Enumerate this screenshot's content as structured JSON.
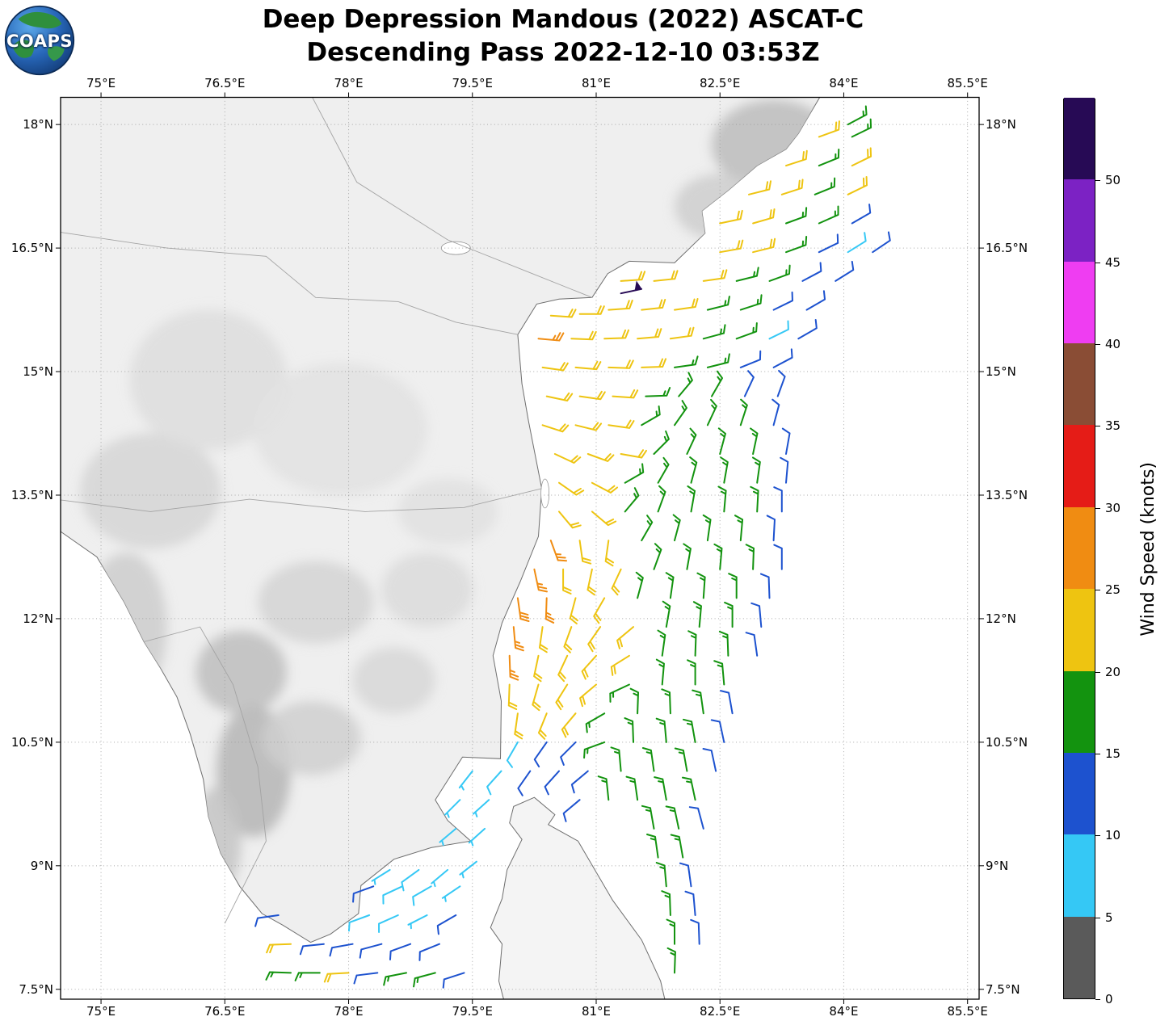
{
  "header": {
    "title_line1": "Deep Depression Mandous (2022) ASCAT-C",
    "title_line2": "Descending Pass 2022-12-10 03:53Z"
  },
  "logo": {
    "text": "COAPS"
  },
  "map": {
    "lon_ticks": [
      {
        "v": 75,
        "label": "75°E"
      },
      {
        "v": 76.5,
        "label": "76.5°E"
      },
      {
        "v": 78,
        "label": "78°E"
      },
      {
        "v": 79.5,
        "label": "79.5°E"
      },
      {
        "v": 81,
        "label": "81°E"
      },
      {
        "v": 82.5,
        "label": "82.5°E"
      },
      {
        "v": 84,
        "label": "84°E"
      },
      {
        "v": 85.5,
        "label": "85.5°E"
      }
    ],
    "lat_ticks": [
      {
        "v": 18,
        "label": "18°N"
      },
      {
        "v": 16.5,
        "label": "16.5°N"
      },
      {
        "v": 15,
        "label": "15°N"
      },
      {
        "v": 13.5,
        "label": "13.5°N"
      },
      {
        "v": 12,
        "label": "12°N"
      },
      {
        "v": 10.5,
        "label": "10.5°N"
      },
      {
        "v": 9,
        "label": "9°N"
      },
      {
        "v": 7.5,
        "label": "7.5°N"
      }
    ]
  },
  "colorbar": {
    "title": "Wind Speed (knots)",
    "ticks": [
      "0",
      "5",
      "10",
      "15",
      "20",
      "25",
      "30",
      "35",
      "40",
      "45",
      "50"
    ],
    "colors_bottom_to_top": [
      "#5a5a5a",
      "#35c8f5",
      "#1d52cf",
      "#13930f",
      "#eec411",
      "#f08c12",
      "#e51c17",
      "#8a4d35",
      "#ef3df2",
      "#7c22c4",
      "#270a55"
    ]
  },
  "chart_data": {
    "type": "wind_barb_map",
    "units": "knots",
    "lon_range": [
      74.51,
      85.64
    ],
    "lat_range": [
      7.38,
      18.33
    ],
    "speed_colors": [
      {
        "max": 5,
        "color": "#5a5a5a"
      },
      {
        "max": 10,
        "color": "#35c8f5"
      },
      {
        "max": 15,
        "color": "#1d52cf"
      },
      {
        "max": 20,
        "color": "#13930f"
      },
      {
        "max": 25,
        "color": "#eec411"
      },
      {
        "max": 30,
        "color": "#f08c12"
      },
      {
        "max": 35,
        "color": "#e51c17"
      },
      {
        "max": 40,
        "color": "#8a4d35"
      },
      {
        "max": 45,
        "color": "#ef3df2"
      },
      {
        "max": 50,
        "color": "#7c22c4"
      },
      {
        "max": 999,
        "color": "#270a55"
      }
    ],
    "barbs": [
      [
        84.05,
        18.0,
        16,
        62
      ],
      [
        83.7,
        17.85,
        21,
        70
      ],
      [
        84.1,
        17.85,
        16,
        64
      ],
      [
        83.3,
        17.5,
        21,
        72
      ],
      [
        83.7,
        17.5,
        17,
        68
      ],
      [
        84.1,
        17.5,
        21,
        64
      ],
      [
        82.85,
        17.15,
        22,
        76
      ],
      [
        83.25,
        17.15,
        21,
        72
      ],
      [
        83.65,
        17.15,
        16,
        68
      ],
      [
        84.05,
        17.15,
        20,
        64
      ],
      [
        82.5,
        16.8,
        21,
        78
      ],
      [
        82.9,
        16.8,
        22,
        74
      ],
      [
        83.3,
        16.8,
        17,
        70
      ],
      [
        83.7,
        16.8,
        16,
        66
      ],
      [
        84.1,
        16.8,
        12,
        60
      ],
      [
        82.5,
        16.45,
        22,
        80
      ],
      [
        82.9,
        16.45,
        21,
        76
      ],
      [
        83.3,
        16.45,
        16,
        70
      ],
      [
        83.7,
        16.45,
        12,
        64
      ],
      [
        84.05,
        16.45,
        8,
        58
      ],
      [
        84.35,
        16.45,
        12,
        56
      ],
      [
        81.3,
        16.1,
        22,
        86
      ],
      [
        81.7,
        16.1,
        22,
        84
      ],
      [
        82.3,
        16.1,
        21,
        82
      ],
      [
        82.7,
        16.1,
        16,
        76
      ],
      [
        83.1,
        16.1,
        17,
        70
      ],
      [
        83.5,
        16.1,
        12,
        62
      ],
      [
        83.9,
        16.1,
        12,
        58
      ],
      [
        81.3,
        15.95,
        52,
        78
      ],
      [
        80.45,
        15.68,
        22,
        94
      ],
      [
        80.8,
        15.7,
        21,
        90
      ],
      [
        81.15,
        15.75,
        22,
        86
      ],
      [
        81.55,
        15.75,
        21,
        84
      ],
      [
        81.95,
        15.75,
        22,
        82
      ],
      [
        82.35,
        15.75,
        17,
        76
      ],
      [
        82.75,
        15.75,
        16,
        72
      ],
      [
        83.15,
        15.75,
        12,
        64
      ],
      [
        83.55,
        15.75,
        12,
        60
      ],
      [
        80.3,
        15.4,
        26,
        95
      ],
      [
        80.7,
        15.4,
        22,
        92
      ],
      [
        81.1,
        15.4,
        22,
        88
      ],
      [
        81.5,
        15.4,
        21,
        85
      ],
      [
        81.9,
        15.4,
        22,
        82
      ],
      [
        82.3,
        15.4,
        16,
        75
      ],
      [
        82.7,
        15.4,
        17,
        70
      ],
      [
        83.1,
        15.4,
        8,
        64
      ],
      [
        83.45,
        15.4,
        12,
        60
      ],
      [
        80.35,
        15.05,
        22,
        98
      ],
      [
        80.75,
        15.05,
        21,
        95
      ],
      [
        81.15,
        15.05,
        22,
        92
      ],
      [
        81.55,
        15.05,
        21,
        88
      ],
      [
        81.95,
        15.05,
        17,
        82
      ],
      [
        82.35,
        15.05,
        16,
        76
      ],
      [
        82.75,
        15.05,
        12,
        68
      ],
      [
        83.15,
        15.05,
        12,
        62
      ],
      [
        80.4,
        14.7,
        22,
        102
      ],
      [
        80.8,
        14.7,
        22,
        98
      ],
      [
        81.2,
        14.7,
        21,
        94
      ],
      [
        81.6,
        14.7,
        17,
        88
      ],
      [
        82.0,
        14.7,
        16,
        40
      ],
      [
        82.4,
        14.7,
        17,
        30
      ],
      [
        82.8,
        14.7,
        12,
        25
      ],
      [
        83.2,
        14.7,
        12,
        20
      ],
      [
        80.35,
        14.35,
        22,
        108
      ],
      [
        80.75,
        14.35,
        21,
        104
      ],
      [
        81.15,
        14.35,
        22,
        98
      ],
      [
        81.55,
        14.35,
        17,
        60
      ],
      [
        81.95,
        14.35,
        16,
        35
      ],
      [
        82.35,
        14.35,
        17,
        25
      ],
      [
        82.75,
        14.35,
        16,
        18
      ],
      [
        83.15,
        14.35,
        12,
        15
      ],
      [
        80.5,
        14.0,
        22,
        115
      ],
      [
        80.9,
        14.0,
        22,
        110
      ],
      [
        81.3,
        14.0,
        21,
        100
      ],
      [
        81.7,
        14.0,
        16,
        45
      ],
      [
        82.1,
        14.0,
        17,
        25
      ],
      [
        82.5,
        14.0,
        16,
        15
      ],
      [
        82.9,
        14.0,
        17,
        12
      ],
      [
        83.3,
        14.0,
        12,
        10
      ],
      [
        80.55,
        13.65,
        21,
        125
      ],
      [
        80.95,
        13.65,
        22,
        118
      ],
      [
        81.35,
        13.65,
        17,
        60
      ],
      [
        81.75,
        13.65,
        16,
        30
      ],
      [
        82.15,
        13.65,
        17,
        15
      ],
      [
        82.55,
        13.65,
        16,
        10
      ],
      [
        82.95,
        13.65,
        17,
        8
      ],
      [
        83.3,
        13.65,
        12,
        5
      ],
      [
        80.55,
        13.3,
        22,
        140
      ],
      [
        80.95,
        13.3,
        21,
        130
      ],
      [
        81.35,
        13.3,
        17,
        40
      ],
      [
        81.75,
        13.3,
        17,
        20
      ],
      [
        82.15,
        13.3,
        16,
        10
      ],
      [
        82.55,
        13.3,
        17,
        5
      ],
      [
        82.95,
        13.3,
        16,
        3
      ],
      [
        83.25,
        13.3,
        12,
        0
      ],
      [
        80.45,
        12.95,
        27,
        160
      ],
      [
        80.8,
        12.95,
        22,
        172
      ],
      [
        81.15,
        12.95,
        21,
        188
      ],
      [
        81.55,
        12.95,
        17,
        30
      ],
      [
        81.95,
        12.95,
        16,
        15
      ],
      [
        82.35,
        12.95,
        17,
        8
      ],
      [
        82.75,
        12.95,
        16,
        5
      ],
      [
        83.15,
        12.95,
        12,
        3
      ],
      [
        80.25,
        12.6,
        27,
        168
      ],
      [
        80.6,
        12.6,
        22,
        180
      ],
      [
        80.95,
        12.6,
        22,
        192
      ],
      [
        81.3,
        12.6,
        21,
        205
      ],
      [
        81.7,
        12.6,
        16,
        20
      ],
      [
        82.1,
        12.6,
        17,
        10
      ],
      [
        82.5,
        12.6,
        16,
        5
      ],
      [
        82.9,
        12.6,
        17,
        2
      ],
      [
        83.25,
        12.6,
        12,
        0
      ],
      [
        80.05,
        12.25,
        28,
        172
      ],
      [
        80.4,
        12.25,
        26,
        182
      ],
      [
        80.75,
        12.25,
        22,
        195
      ],
      [
        81.1,
        12.25,
        21,
        210
      ],
      [
        81.5,
        12.25,
        17,
        15
      ],
      [
        81.9,
        12.25,
        16,
        8
      ],
      [
        82.3,
        12.25,
        17,
        4
      ],
      [
        82.7,
        12.25,
        16,
        0
      ],
      [
        83.1,
        12.25,
        12,
        358
      ],
      [
        80.0,
        11.9,
        27,
        175
      ],
      [
        80.35,
        11.9,
        22,
        188
      ],
      [
        80.7,
        11.9,
        22,
        200
      ],
      [
        81.05,
        11.9,
        21,
        215
      ],
      [
        81.45,
        11.9,
        21,
        230
      ],
      [
        81.85,
        11.9,
        16,
        10
      ],
      [
        82.25,
        11.9,
        17,
        5
      ],
      [
        82.65,
        11.9,
        16,
        0
      ],
      [
        83.0,
        11.9,
        12,
        355
      ],
      [
        79.95,
        11.55,
        26,
        178
      ],
      [
        80.3,
        11.55,
        22,
        192
      ],
      [
        80.65,
        11.55,
        21,
        205
      ],
      [
        81.0,
        11.55,
        22,
        222
      ],
      [
        81.4,
        11.55,
        21,
        238
      ],
      [
        81.8,
        11.55,
        17,
        8
      ],
      [
        82.2,
        11.55,
        16,
        2
      ],
      [
        82.6,
        11.55,
        17,
        358
      ],
      [
        82.95,
        11.55,
        12,
        352
      ],
      [
        79.95,
        11.2,
        22,
        182
      ],
      [
        80.3,
        11.2,
        21,
        196
      ],
      [
        80.65,
        11.2,
        22,
        212
      ],
      [
        81.0,
        11.2,
        21,
        230
      ],
      [
        81.4,
        11.2,
        17,
        245
      ],
      [
        81.8,
        11.2,
        16,
        5
      ],
      [
        82.2,
        11.2,
        17,
        0
      ],
      [
        82.55,
        11.2,
        16,
        355
      ],
      [
        80.05,
        10.85,
        21,
        188
      ],
      [
        80.4,
        10.85,
        22,
        202
      ],
      [
        80.75,
        10.85,
        21,
        220
      ],
      [
        81.1,
        10.85,
        17,
        240
      ],
      [
        81.5,
        10.85,
        16,
        2
      ],
      [
        81.9,
        10.85,
        17,
        358
      ],
      [
        82.3,
        10.85,
        16,
        352
      ],
      [
        82.65,
        10.85,
        12,
        350
      ],
      [
        80.05,
        10.5,
        8,
        210
      ],
      [
        80.4,
        10.5,
        12,
        215
      ],
      [
        80.75,
        10.5,
        12,
        225
      ],
      [
        81.1,
        10.5,
        16,
        250
      ],
      [
        81.45,
        10.5,
        16,
        358
      ],
      [
        81.85,
        10.5,
        17,
        355
      ],
      [
        82.2,
        10.5,
        16,
        350
      ],
      [
        82.55,
        10.5,
        12,
        348
      ],
      [
        79.5,
        10.15,
        7,
        218
      ],
      [
        79.85,
        10.15,
        8,
        222
      ],
      [
        80.2,
        10.15,
        12,
        215
      ],
      [
        80.55,
        10.15,
        11,
        222
      ],
      [
        80.9,
        10.15,
        12,
        230
      ],
      [
        81.3,
        10.15,
        16,
        355
      ],
      [
        81.7,
        10.15,
        17,
        352
      ],
      [
        82.1,
        10.15,
        16,
        350
      ],
      [
        82.45,
        10.15,
        12,
        348
      ],
      [
        79.35,
        9.8,
        7,
        225
      ],
      [
        79.7,
        9.8,
        6,
        228
      ],
      [
        80.8,
        9.8,
        12,
        230
      ],
      [
        81.15,
        9.8,
        16,
        354
      ],
      [
        81.5,
        9.8,
        16,
        352
      ],
      [
        81.85,
        9.8,
        17,
        350
      ],
      [
        82.2,
        9.8,
        16,
        348
      ],
      [
        79.3,
        9.45,
        6,
        230
      ],
      [
        79.65,
        9.45,
        7,
        228
      ],
      [
        81.7,
        9.45,
        16,
        350
      ],
      [
        82.0,
        9.45,
        17,
        348
      ],
      [
        82.3,
        9.45,
        12,
        345
      ],
      [
        78.5,
        8.95,
        7,
        238
      ],
      [
        78.85,
        8.95,
        8,
        234
      ],
      [
        79.2,
        8.95,
        7,
        230
      ],
      [
        79.55,
        9.05,
        7,
        232
      ],
      [
        81.75,
        9.1,
        16,
        352
      ],
      [
        82.05,
        9.1,
        16,
        350
      ],
      [
        78.3,
        8.75,
        11,
        250
      ],
      [
        78.65,
        8.75,
        8,
        245
      ],
      [
        79.0,
        8.75,
        8,
        240
      ],
      [
        79.35,
        8.75,
        7,
        236
      ],
      [
        81.85,
        8.75,
        17,
        355
      ],
      [
        82.15,
        8.75,
        12,
        352
      ],
      [
        77.15,
        8.4,
        12,
        262
      ],
      [
        78.25,
        8.4,
        8,
        250
      ],
      [
        78.6,
        8.4,
        8,
        246
      ],
      [
        78.95,
        8.4,
        7,
        243
      ],
      [
        79.3,
        8.4,
        12,
        240
      ],
      [
        81.9,
        8.4,
        16,
        358
      ],
      [
        82.2,
        8.4,
        12,
        355
      ],
      [
        77.3,
        8.05,
        20,
        268
      ],
      [
        77.7,
        8.05,
        12,
        264
      ],
      [
        78.05,
        8.05,
        12,
        260
      ],
      [
        78.4,
        8.05,
        11,
        255
      ],
      [
        78.75,
        8.05,
        12,
        250
      ],
      [
        79.1,
        8.05,
        12,
        248
      ],
      [
        81.95,
        8.05,
        16,
        0
      ],
      [
        82.25,
        8.05,
        12,
        358
      ],
      [
        77.3,
        7.7,
        17,
        272
      ],
      [
        77.65,
        7.7,
        16,
        270
      ],
      [
        78.0,
        7.7,
        20,
        267
      ],
      [
        78.35,
        7.7,
        12,
        263
      ],
      [
        78.7,
        7.7,
        16,
        259
      ],
      [
        79.05,
        7.7,
        16,
        255
      ],
      [
        79.4,
        7.7,
        12,
        252
      ],
      [
        81.95,
        7.7,
        16,
        2
      ]
    ]
  }
}
